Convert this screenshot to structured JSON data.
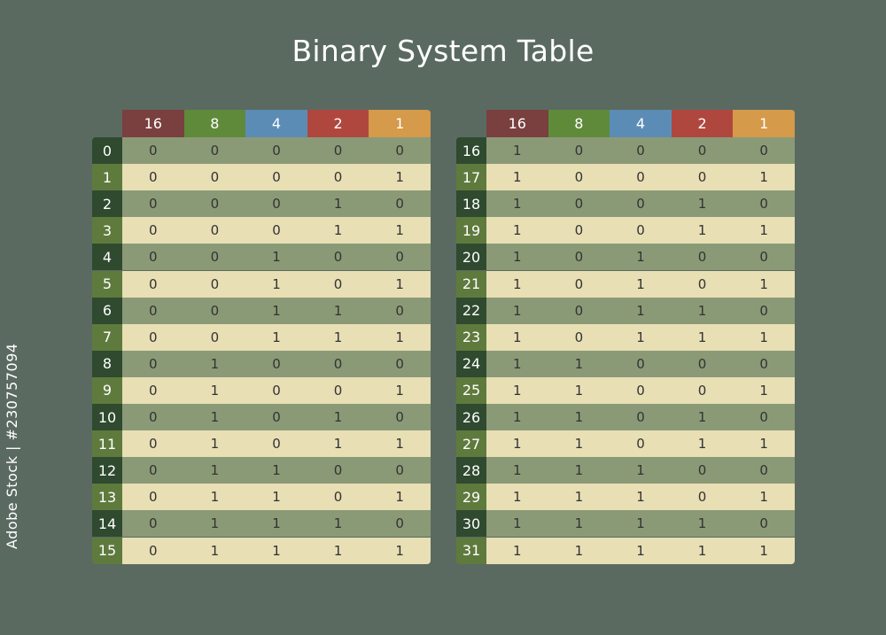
{
  "title": "Binary System Table",
  "watermark": "Adobe Stock | #230757094",
  "colors": {
    "background": "#5a6a61",
    "header": [
      "#7a3f3f",
      "#5f8a3a",
      "#5b8cb5",
      "#b0473f",
      "#d59a4a"
    ],
    "row_even": "#8b9a76",
    "row_odd": "#e8dfb5",
    "label_even": "#2f4a2f",
    "label_odd": "#5f7a3d"
  },
  "headers": [
    "16",
    "8",
    "4",
    "2",
    "1"
  ],
  "tables": [
    {
      "rows": [
        {
          "n": "0",
          "bits": [
            "0",
            "0",
            "0",
            "0",
            "0"
          ]
        },
        {
          "n": "1",
          "bits": [
            "0",
            "0",
            "0",
            "0",
            "1"
          ]
        },
        {
          "n": "2",
          "bits": [
            "0",
            "0",
            "0",
            "1",
            "0"
          ]
        },
        {
          "n": "3",
          "bits": [
            "0",
            "0",
            "0",
            "1",
            "1"
          ]
        },
        {
          "n": "4",
          "bits": [
            "0",
            "0",
            "1",
            "0",
            "0"
          ]
        },
        {
          "n": "5",
          "bits": [
            "0",
            "0",
            "1",
            "0",
            "1"
          ]
        },
        {
          "n": "6",
          "bits": [
            "0",
            "0",
            "1",
            "1",
            "0"
          ]
        },
        {
          "n": "7",
          "bits": [
            "0",
            "0",
            "1",
            "1",
            "1"
          ]
        },
        {
          "n": "8",
          "bits": [
            "0",
            "1",
            "0",
            "0",
            "0"
          ]
        },
        {
          "n": "9",
          "bits": [
            "0",
            "1",
            "0",
            "0",
            "1"
          ]
        },
        {
          "n": "10",
          "bits": [
            "0",
            "1",
            "0",
            "1",
            "0"
          ]
        },
        {
          "n": "11",
          "bits": [
            "0",
            "1",
            "0",
            "1",
            "1"
          ]
        },
        {
          "n": "12",
          "bits": [
            "0",
            "1",
            "1",
            "0",
            "0"
          ]
        },
        {
          "n": "13",
          "bits": [
            "0",
            "1",
            "1",
            "0",
            "1"
          ]
        },
        {
          "n": "14",
          "bits": [
            "0",
            "1",
            "1",
            "1",
            "0"
          ]
        },
        {
          "n": "15",
          "bits": [
            "0",
            "1",
            "1",
            "1",
            "1"
          ]
        }
      ]
    },
    {
      "rows": [
        {
          "n": "16",
          "bits": [
            "1",
            "0",
            "0",
            "0",
            "0"
          ]
        },
        {
          "n": "17",
          "bits": [
            "1",
            "0",
            "0",
            "0",
            "1"
          ]
        },
        {
          "n": "18",
          "bits": [
            "1",
            "0",
            "0",
            "1",
            "0"
          ]
        },
        {
          "n": "19",
          "bits": [
            "1",
            "0",
            "0",
            "1",
            "1"
          ]
        },
        {
          "n": "20",
          "bits": [
            "1",
            "0",
            "1",
            "0",
            "0"
          ]
        },
        {
          "n": "21",
          "bits": [
            "1",
            "0",
            "1",
            "0",
            "1"
          ]
        },
        {
          "n": "22",
          "bits": [
            "1",
            "0",
            "1",
            "1",
            "0"
          ]
        },
        {
          "n": "23",
          "bits": [
            "1",
            "0",
            "1",
            "1",
            "1"
          ]
        },
        {
          "n": "24",
          "bits": [
            "1",
            "1",
            "0",
            "0",
            "0"
          ]
        },
        {
          "n": "25",
          "bits": [
            "1",
            "1",
            "0",
            "0",
            "1"
          ]
        },
        {
          "n": "26",
          "bits": [
            "1",
            "1",
            "0",
            "1",
            "0"
          ]
        },
        {
          "n": "27",
          "bits": [
            "1",
            "1",
            "0",
            "1",
            "1"
          ]
        },
        {
          "n": "28",
          "bits": [
            "1",
            "1",
            "1",
            "0",
            "0"
          ]
        },
        {
          "n": "29",
          "bits": [
            "1",
            "1",
            "1",
            "0",
            "1"
          ]
        },
        {
          "n": "30",
          "bits": [
            "1",
            "1",
            "1",
            "1",
            "0"
          ]
        },
        {
          "n": "31",
          "bits": [
            "1",
            "1",
            "1",
            "1",
            "1"
          ]
        }
      ]
    }
  ]
}
